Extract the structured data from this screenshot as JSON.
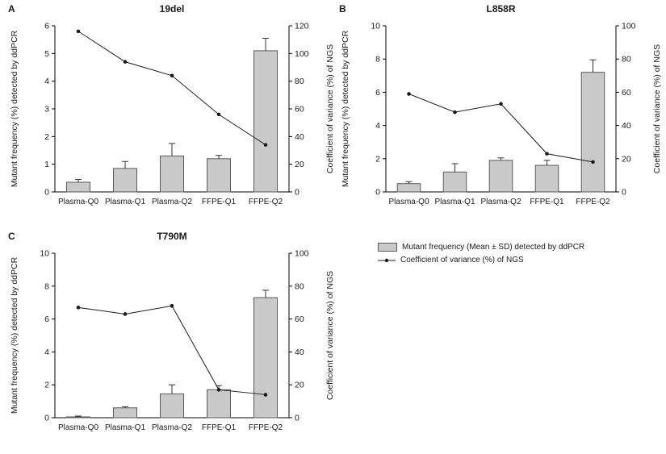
{
  "figure": {
    "description": "Mutant frequency by ddPCR (bars) and coefficient of variance of NGS (line) across sample dilutions",
    "background": "#ffffff"
  },
  "style": {
    "bar_fill": "#c9c9c9",
    "bar_stroke": "#5a5a5a",
    "error_color": "#333333",
    "line_color": "#1a1a1a",
    "axis_color": "#000000"
  },
  "legend": {
    "bar_label": "Mutant frequency (Mean ±  SD) detected by ddPCR",
    "line_label": "Coefficient of variance (%) of NGS"
  },
  "chart_data": [
    {
      "type": "bar",
      "panel": "A",
      "title": "19del",
      "categories": [
        "Plasma-Q0",
        "Plasma-Q1",
        "Plasma-Q2",
        "FFPE-Q1",
        "FFPE-Q2"
      ],
      "series": [
        {
          "name": "Mutant frequency (%) detected by ddPCR",
          "type": "bar",
          "values": [
            0.35,
            0.85,
            1.3,
            1.2,
            5.1
          ],
          "errors": [
            0.1,
            0.25,
            0.45,
            0.12,
            0.45
          ]
        },
        {
          "name": "Coefficient of variance (%) of NGS",
          "type": "line",
          "values": [
            116,
            94,
            84,
            56,
            34
          ]
        }
      ],
      "ylabel_left": "Mutant frequency (%) detected by ddPCR",
      "ylabel_right": "Coefficient of variance (%) of NGS",
      "ylim_left": [
        0,
        6
      ],
      "yticks_left": [
        0,
        1,
        2,
        3,
        4,
        5,
        6
      ],
      "ylim_right": [
        0,
        120
      ],
      "yticks_right": [
        0,
        20,
        40,
        60,
        80,
        100,
        120
      ],
      "grid": false,
      "legend_position": "outside-right"
    },
    {
      "type": "bar",
      "panel": "B",
      "title": "L858R",
      "categories": [
        "Plasma-Q0",
        "Plasma-Q1",
        "Plasma-Q2",
        "FFPE-Q1",
        "FFPE-Q2"
      ],
      "series": [
        {
          "name": "Mutant frequency (%) detected by ddPCR",
          "type": "bar",
          "values": [
            0.5,
            1.2,
            1.9,
            1.6,
            7.2
          ],
          "errors": [
            0.12,
            0.5,
            0.15,
            0.3,
            0.75
          ]
        },
        {
          "name": "Coefficient of variance (%) of NGS",
          "type": "line",
          "values": [
            59,
            48,
            53,
            23,
            18
          ]
        }
      ],
      "ylabel_left": "Mutant frequency (%) detected by ddPCR",
      "ylabel_right": "Coefficient of variance (%) of NGS",
      "ylim_left": [
        0,
        10
      ],
      "yticks_left": [
        0,
        2,
        4,
        6,
        8,
        10
      ],
      "ylim_right": [
        0,
        100
      ],
      "yticks_right": [
        0,
        20,
        40,
        60,
        80,
        100
      ],
      "grid": false,
      "legend_position": "outside-right"
    },
    {
      "type": "bar",
      "panel": "C",
      "title": "T790M",
      "categories": [
        "Plasma-Q0",
        "Plasma-Q1",
        "Plasma-Q2",
        "FFPE-Q1",
        "FFPE-Q2"
      ],
      "series": [
        {
          "name": "Mutant frequency (%) detected by ddPCR",
          "type": "bar",
          "values": [
            0.05,
            0.6,
            1.45,
            1.7,
            7.3
          ],
          "errors": [
            0.05,
            0.07,
            0.55,
            0.25,
            0.45
          ]
        },
        {
          "name": "Coefficient of variance (%) of NGS",
          "type": "line",
          "values": [
            67,
            63,
            68,
            17,
            14
          ]
        }
      ],
      "ylabel_left": "Mutant frequency (%) detected by ddPCR",
      "ylabel_right": "Coefficient of variance (%) of NGS",
      "ylim_left": [
        0,
        10
      ],
      "yticks_left": [
        0,
        2,
        4,
        6,
        8,
        10
      ],
      "ylim_right": [
        0,
        100
      ],
      "yticks_right": [
        0,
        20,
        40,
        60,
        80,
        100
      ],
      "grid": false,
      "legend_position": "outside-right"
    }
  ]
}
